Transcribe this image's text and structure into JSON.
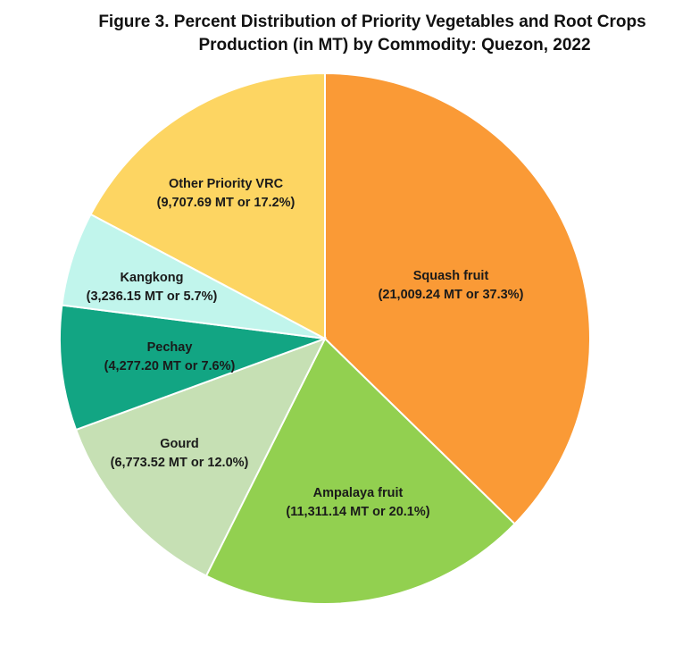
{
  "chart_data": {
    "type": "pie",
    "title_line1": "Figure 3. Percent Distribution of Priority Vegetables and Root Crops",
    "title_line2": "Production (in MT) by Commodity: Quezon, 2022",
    "slices": [
      {
        "name": "Squash fruit",
        "value": 21009.24,
        "percent": 37.3,
        "detail": "(21,009.24 MT or 37.3%)",
        "color": "#FA9A36"
      },
      {
        "name": "Ampalaya fruit",
        "value": 11311.14,
        "percent": 20.1,
        "detail": "(11,311.14 MT or 20.1%)",
        "color": "#92D050"
      },
      {
        "name": "Gourd",
        "value": 6773.52,
        "percent": 12.0,
        "detail": "(6,773.52 MT or 12.0%)",
        "color": "#C6E0B4"
      },
      {
        "name": "Pechay",
        "value": 4277.2,
        "percent": 7.6,
        "detail": "(4,277.20 MT or 7.6%)",
        "color": "#12A583"
      },
      {
        "name": "Kangkong",
        "value": 3236.15,
        "percent": 5.7,
        "detail": "(3,236.15 MT or 5.7%)",
        "color": "#C1F5EC"
      },
      {
        "name": "Other Priority VRC",
        "value": 9707.69,
        "percent": 17.2,
        "detail": "(9,707.69 MT or 17.2%)",
        "color": "#FDD562"
      }
    ]
  }
}
